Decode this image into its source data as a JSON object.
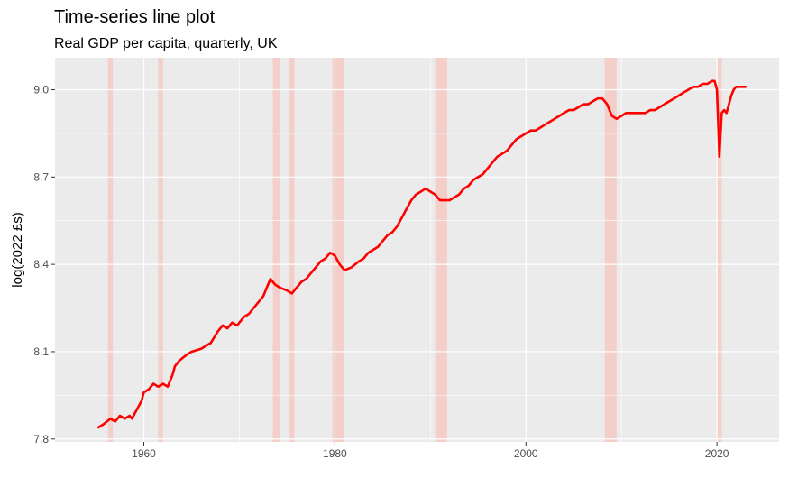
{
  "chart_data": {
    "type": "line",
    "title": "Time-series line plot",
    "subtitle": "Real GDP per capita, quarterly, UK",
    "xlabel": "",
    "ylabel": "log(2022 £s)",
    "xlim": [
      1950.7,
      2026.5
    ],
    "ylim": [
      7.79,
      9.11
    ],
    "x_ticks": [
      1960,
      1980,
      2000,
      2020
    ],
    "y_ticks": [
      7.8,
      8.1,
      8.4,
      8.7,
      9.0
    ],
    "y_tick_labels": [
      "7.8",
      "8.1",
      "8.4",
      "8.7",
      "9.0"
    ],
    "grid": true,
    "background": "#ebebeb",
    "line_color": "#ff0000",
    "recession_color": "#f4cfc9",
    "recessions": [
      [
        1956.25,
        1956.75
      ],
      [
        1961.5,
        1962.0
      ],
      [
        1973.5,
        1974.25
      ],
      [
        1975.25,
        1975.75
      ],
      [
        1979.75,
        1981.0
      ],
      [
        1990.5,
        1991.75
      ],
      [
        2008.25,
        2009.5
      ],
      [
        2020.0,
        2020.5
      ]
    ],
    "series": [
      {
        "x": [
          1955.25,
          1955.75,
          1956.5,
          1957.0,
          1957.5,
          1958.0,
          1958.5,
          1958.75,
          1959.25,
          1959.75,
          1960.0,
          1960.5,
          1961.0,
          1961.5,
          1962.0,
          1962.5,
          1963.0,
          1963.25,
          1963.75,
          1964.5,
          1965.0,
          1966.0,
          1966.5,
          1967.0,
          1967.75,
          1968.25,
          1968.75,
          1969.25,
          1969.75,
          1970.5,
          1971.0,
          1971.5,
          1972.0,
          1972.5,
          1973.0,
          1973.25,
          1973.75,
          1974.25,
          1975.0,
          1975.5,
          1976.0,
          1976.5,
          1977.0,
          1977.5,
          1978.0,
          1978.5,
          1979.0,
          1979.5,
          1980.0,
          1980.5,
          1981.0,
          1981.75,
          1982.5,
          1983.0,
          1983.5,
          1984.0,
          1984.5,
          1985.0,
          1985.5,
          1986.0,
          1986.5,
          1987.0,
          1987.5,
          1988.0,
          1988.5,
          1989.0,
          1989.5,
          1990.0,
          1990.5,
          1991.0,
          1991.5,
          1992.0,
          1992.5,
          1993.0,
          1993.5,
          1994.0,
          1994.5,
          1995.0,
          1995.5,
          1996.0,
          1996.5,
          1997.0,
          1997.5,
          1998.0,
          1998.5,
          1999.0,
          1999.5,
          2000.0,
          2000.5,
          2001.0,
          2001.5,
          2002.0,
          2002.5,
          2003.0,
          2003.5,
          2004.0,
          2004.5,
          2005.0,
          2005.5,
          2006.0,
          2006.5,
          2007.0,
          2007.5,
          2008.0,
          2008.5,
          2009.0,
          2009.5,
          2010.0,
          2010.5,
          2011.0,
          2011.5,
          2012.0,
          2012.5,
          2013.0,
          2013.5,
          2014.0,
          2014.5,
          2015.0,
          2015.5,
          2016.0,
          2016.5,
          2017.0,
          2017.5,
          2018.0,
          2018.5,
          2019.0,
          2019.5,
          2019.75,
          2020.0,
          2020.25,
          2020.5,
          2020.75,
          2021.0,
          2021.25,
          2021.5,
          2021.75,
          2022.0,
          2022.5,
          2023.0
        ],
        "values": [
          7.84,
          7.85,
          7.87,
          7.86,
          7.88,
          7.87,
          7.88,
          7.87,
          7.9,
          7.93,
          7.96,
          7.97,
          7.99,
          7.98,
          7.99,
          7.98,
          8.02,
          8.05,
          8.07,
          8.09,
          8.1,
          8.11,
          8.12,
          8.13,
          8.17,
          8.19,
          8.18,
          8.2,
          8.19,
          8.22,
          8.23,
          8.25,
          8.27,
          8.29,
          8.33,
          8.35,
          8.33,
          8.32,
          8.31,
          8.3,
          8.32,
          8.34,
          8.35,
          8.37,
          8.39,
          8.41,
          8.42,
          8.44,
          8.43,
          8.4,
          8.38,
          8.39,
          8.41,
          8.42,
          8.44,
          8.45,
          8.46,
          8.48,
          8.5,
          8.51,
          8.53,
          8.56,
          8.59,
          8.62,
          8.64,
          8.65,
          8.66,
          8.65,
          8.64,
          8.62,
          8.62,
          8.62,
          8.63,
          8.64,
          8.66,
          8.67,
          8.69,
          8.7,
          8.71,
          8.73,
          8.75,
          8.77,
          8.78,
          8.79,
          8.81,
          8.83,
          8.84,
          8.85,
          8.86,
          8.86,
          8.87,
          8.88,
          8.89,
          8.9,
          8.91,
          8.92,
          8.93,
          8.93,
          8.94,
          8.95,
          8.95,
          8.96,
          8.97,
          8.97,
          8.95,
          8.91,
          8.9,
          8.91,
          8.92,
          8.92,
          8.92,
          8.92,
          8.92,
          8.93,
          8.93,
          8.94,
          8.95,
          8.96,
          8.97,
          8.98,
          8.99,
          9.0,
          9.01,
          9.01,
          9.02,
          9.02,
          9.03,
          9.03,
          9.0,
          8.77,
          8.92,
          8.93,
          8.92,
          8.95,
          8.98,
          9.0,
          9.01,
          9.01,
          9.01
        ]
      }
    ]
  }
}
